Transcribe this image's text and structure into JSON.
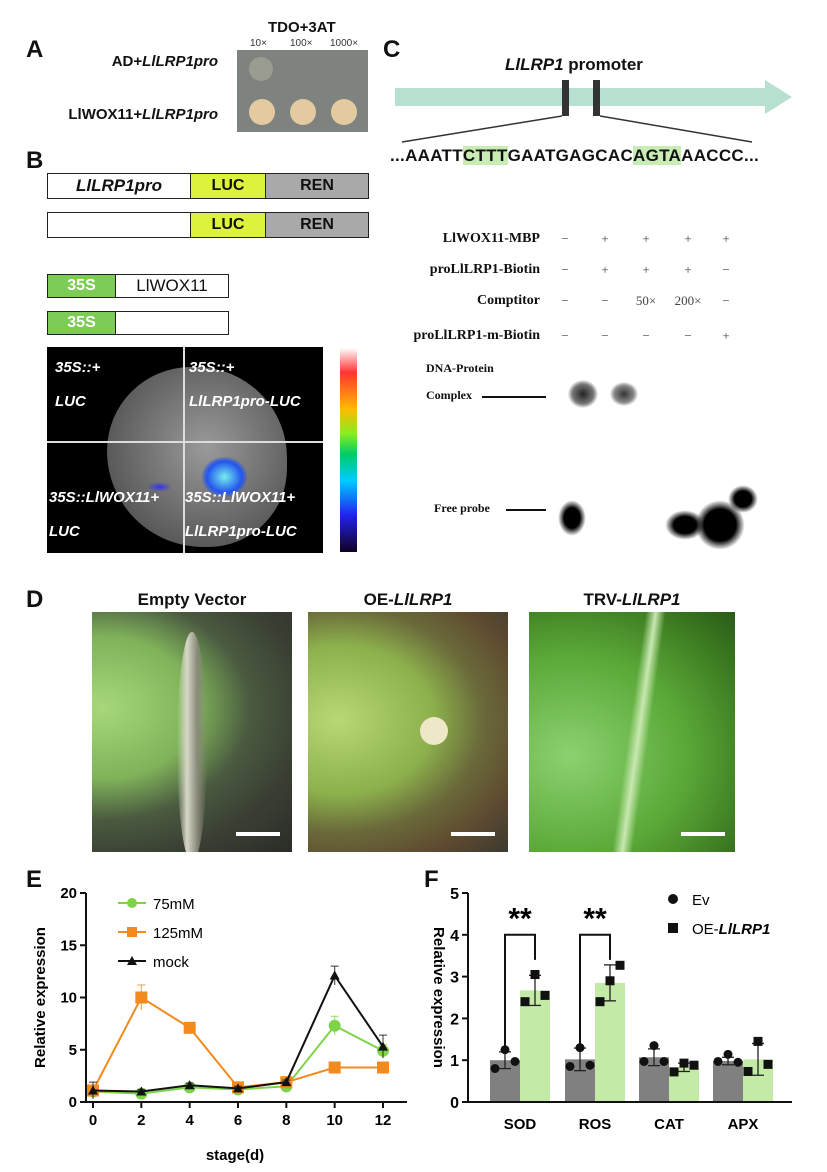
{
  "panels": {
    "a": "A",
    "b": "B",
    "c": "C",
    "d": "D",
    "e": "E",
    "f": "F"
  },
  "panel_a": {
    "medium": "TDO+3AT",
    "dilutions": [
      "10×",
      "100×",
      "1000×"
    ],
    "rows": [
      {
        "pre": "AD+",
        "italic": "LlLRP1pro"
      },
      {
        "pre": "LlWOX11+",
        "italic": "LlLRP1pro"
      }
    ]
  },
  "panel_b": {
    "construct1": {
      "promoter": "LlLRP1pro",
      "luc": "LUC",
      "ren": "REN"
    },
    "construct2": {
      "luc": "LUC",
      "ren": "REN"
    },
    "effector1": {
      "promoter": "35S",
      "gene": "LlWOX11"
    },
    "effector2": {
      "promoter": "35S"
    },
    "quadrants": [
      [
        "35S::+",
        "LUC"
      ],
      [
        "35S::+",
        "LlLRP1pro-LUC"
      ],
      [
        "35S::LlWOX11+",
        "LUC"
      ],
      [
        "35S::LlWOX11+",
        "LlLRP1pro-LUC"
      ]
    ],
    "colors": {
      "luc": "#dcf23c",
      "ren": "#a9a9a9",
      "s35": "#7ccc55"
    }
  },
  "panel_c": {
    "gene": "LlLRP1",
    "promoter_label": "promoter",
    "sequence": [
      "...AAATT",
      "CTTT",
      "GAATGAGCAC",
      "AGTA",
      "AACCC..."
    ],
    "highlight": "#c8ecb4",
    "emsa_rows": [
      {
        "label": "LlWOX11-MBP",
        "lanes": [
          "−",
          "+",
          "+",
          "+",
          "+"
        ]
      },
      {
        "label": "proLlLRP1-Biotin",
        "lanes": [
          "−",
          "+",
          "+",
          "+",
          "−"
        ]
      },
      {
        "label": "Comptitor",
        "lanes": [
          "−",
          "−",
          "50×",
          "200×",
          "−"
        ]
      },
      {
        "label": "proLlLRP1-m-Biotin",
        "lanes": [
          "−",
          "−",
          "−",
          "−",
          "+"
        ]
      }
    ],
    "complex_label": [
      "DNA-Protein",
      "Complex"
    ],
    "free_probe_label": "Free probe"
  },
  "panel_d": {
    "titles": [
      {
        "pre": "Empty Vector",
        "italic": ""
      },
      {
        "pre": "OE-",
        "italic": "LlLRP1"
      },
      {
        "pre": "TRV-",
        "italic": "LlLRP1"
      }
    ]
  },
  "chart_data": [
    {
      "type": "line",
      "xlabel": "stage(d)",
      "ylabel": "Relative expression",
      "xlim": [
        0,
        12
      ],
      "ylim": [
        0,
        20
      ],
      "xticks": [
        0,
        2,
        4,
        6,
        8,
        10,
        12
      ],
      "yticks": [
        0,
        5,
        10,
        15,
        20
      ],
      "legend": "top-left",
      "x": [
        0,
        2,
        4,
        6,
        8,
        10,
        12
      ],
      "series": [
        {
          "name": "75mM",
          "color": "#7ed348",
          "marker": "circle",
          "values": [
            1.0,
            0.8,
            1.4,
            1.2,
            1.5,
            7.3,
            4.9
          ],
          "errors": [
            0.3,
            0.2,
            0.2,
            0.2,
            0.2,
            0.9,
            0.6
          ]
        },
        {
          "name": "125mM",
          "color": "#f28a1e",
          "marker": "square",
          "values": [
            1.1,
            10.0,
            7.1,
            1.4,
            1.9,
            3.3,
            3.3
          ],
          "errors": [
            0.4,
            1.2,
            0.2,
            0.2,
            0.2,
            0.2,
            0.2
          ]
        },
        {
          "name": "mock",
          "color": "#111111",
          "marker": "triangle",
          "values": [
            1.1,
            1.0,
            1.6,
            1.3,
            1.9,
            12.1,
            5.3
          ],
          "errors": [
            0.8,
            0.2,
            0.2,
            0.2,
            0.2,
            0.9,
            1.1
          ]
        }
      ]
    },
    {
      "type": "bar",
      "ylabel": "Relative expression",
      "ylim": [
        0,
        5
      ],
      "yticks": [
        0,
        1,
        2,
        3,
        4,
        5
      ],
      "legend": "top-right",
      "categories": [
        "SOD",
        "ROS",
        "CAT",
        "APX"
      ],
      "series": [
        {
          "name": "Ev",
          "italic": "",
          "color": "#808080",
          "marker": "circle",
          "values": [
            1.0,
            1.02,
            1.07,
            0.98
          ],
          "sd": [
            0.2,
            0.27,
            0.2,
            0.09
          ],
          "points": [
            [
              0.8,
              1.25,
              0.97
            ],
            [
              0.85,
              1.3,
              0.88
            ],
            [
              0.97,
              1.35,
              0.97
            ],
            [
              0.97,
              1.14,
              0.95
            ]
          ]
        },
        {
          "name": "OE-",
          "italic": "LlLRP1",
          "color": "#c3eaa6",
          "marker": "square",
          "values": [
            2.67,
            2.85,
            0.83,
            1.02
          ],
          "sd": [
            0.36,
            0.43,
            0.1,
            0.38
          ],
          "points": [
            [
              2.4,
              3.05,
              2.55
            ],
            [
              2.4,
              2.9,
              3.27
            ],
            [
              0.72,
              0.93,
              0.88
            ],
            [
              0.73,
              1.45,
              0.9
            ]
          ]
        }
      ],
      "significance": [
        {
          "category": "SOD",
          "label": "**"
        },
        {
          "category": "ROS",
          "label": "**"
        }
      ]
    }
  ]
}
